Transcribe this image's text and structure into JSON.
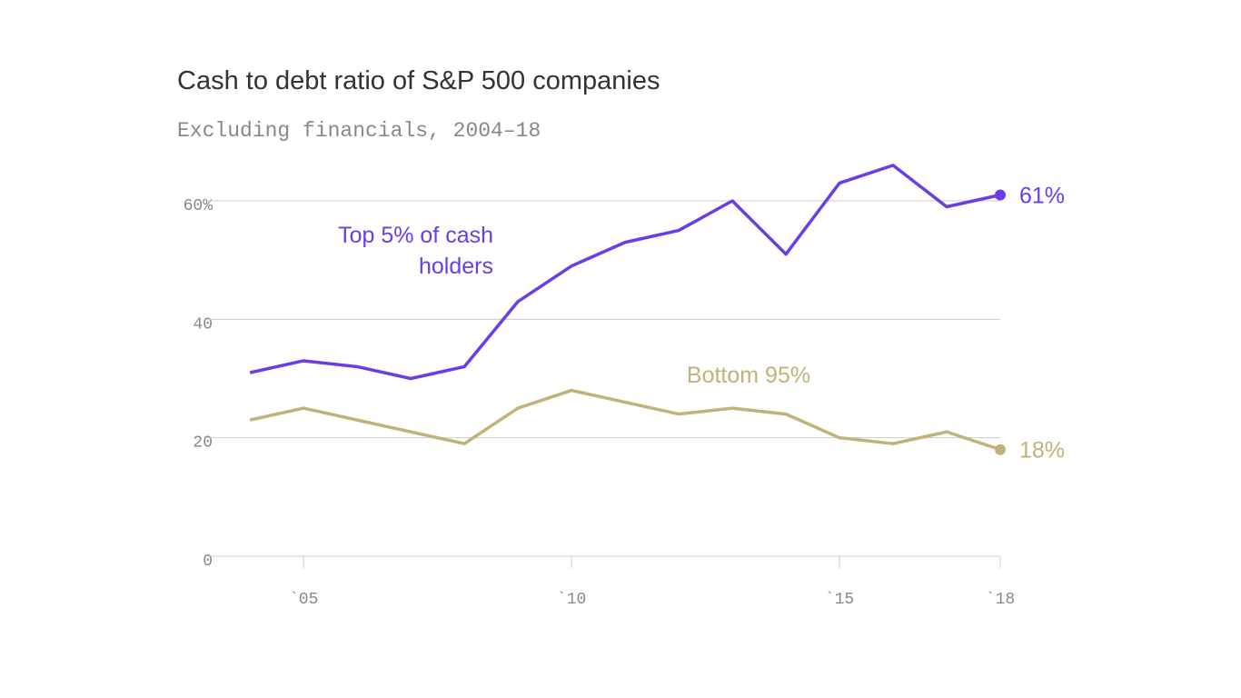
{
  "chart_data": {
    "type": "line",
    "title": "Cash to debt ratio of S&P 500 companies",
    "subtitle": "Excluding financials, 2004–18",
    "x": [
      2004,
      2005,
      2006,
      2007,
      2008,
      2009,
      2010,
      2011,
      2012,
      2013,
      2014,
      2015,
      2016,
      2017,
      2018
    ],
    "series": [
      {
        "name": "Top 5% of cash holders",
        "color": "#6a3de8",
        "values": [
          31,
          33,
          32,
          30,
          32,
          43,
          49,
          53,
          55,
          60,
          51,
          63,
          66,
          59,
          61
        ],
        "value_labels": [
          null,
          null,
          null,
          null,
          null,
          null,
          null,
          null,
          null,
          null,
          null,
          null,
          null,
          null,
          "61%"
        ]
      },
      {
        "name": "Bottom 95%",
        "color": "#c2b27a",
        "values": [
          23,
          25,
          23,
          21,
          19,
          25,
          28,
          26,
          24,
          25,
          24,
          20,
          19,
          21,
          18
        ],
        "value_labels": [
          null,
          null,
          null,
          null,
          null,
          null,
          null,
          null,
          null,
          null,
          null,
          null,
          null,
          null,
          "18%"
        ]
      }
    ],
    "xlim": [
      2003.2,
      2018
    ],
    "xticks": [
      {
        "value": 2005,
        "label": "`05"
      },
      {
        "value": 2010,
        "label": "`10"
      },
      {
        "value": 2015,
        "label": "`15"
      },
      {
        "value": 2018,
        "label": "`18"
      }
    ],
    "ylim": [
      0,
      60
    ],
    "yticks": [
      0,
      20,
      40,
      {
        "value": 60,
        "label": "60%"
      }
    ],
    "grid": true
  }
}
